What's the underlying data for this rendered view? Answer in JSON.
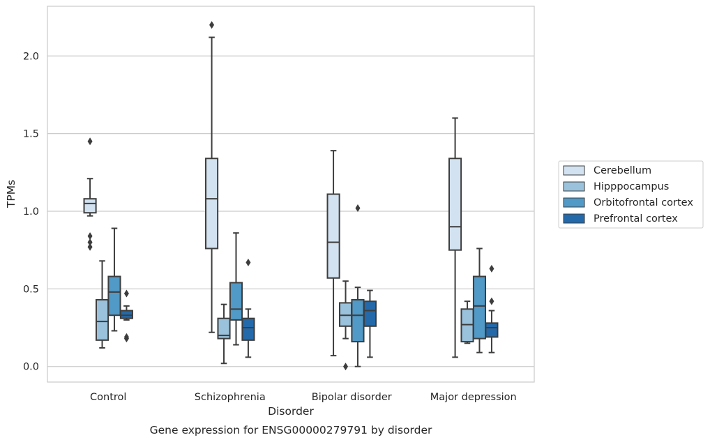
{
  "chart_data": {
    "type": "boxplot",
    "caption": "Gene expression for ENSG00000279791 by disorder",
    "xlabel": "Disorder",
    "ylabel": "TPMs",
    "ylim": [
      -0.1,
      2.32
    ],
    "yticks": [
      0.0,
      0.5,
      1.0,
      1.5,
      2.0
    ],
    "ytick_labels": [
      "0.0",
      "0.5",
      "1.0",
      "1.5",
      "2.0"
    ],
    "grid": "horizontal",
    "legend_position": "right",
    "categories": [
      "Control",
      "Schizophrenia",
      "Bipolar disorder",
      "Major depression"
    ],
    "series": [
      {
        "name": "Cerebellum",
        "color": "#d3e2f1",
        "boxes": [
          {
            "whislo": 0.97,
            "q1": 0.99,
            "med": 1.05,
            "q3": 1.08,
            "whishi": 1.21,
            "fliers": [
              1.45,
              0.84,
              0.8,
              0.77
            ]
          },
          {
            "whislo": 0.22,
            "q1": 0.76,
            "med": 1.08,
            "q3": 1.34,
            "whishi": 2.12,
            "fliers": [
              2.2
            ]
          },
          {
            "whislo": 0.07,
            "q1": 0.57,
            "med": 0.8,
            "q3": 1.11,
            "whishi": 1.39,
            "fliers": []
          },
          {
            "whislo": 0.06,
            "q1": 0.75,
            "med": 0.9,
            "q3": 1.34,
            "whishi": 1.6,
            "fliers": []
          }
        ]
      },
      {
        "name": "Hipppocampus",
        "color": "#9ac2dc",
        "boxes": [
          {
            "whislo": 0.12,
            "q1": 0.17,
            "med": 0.29,
            "q3": 0.43,
            "whishi": 0.68,
            "fliers": []
          },
          {
            "whislo": 0.02,
            "q1": 0.18,
            "med": 0.2,
            "q3": 0.31,
            "whishi": 0.4,
            "fliers": []
          },
          {
            "whislo": 0.18,
            "q1": 0.26,
            "med": 0.33,
            "q3": 0.41,
            "whishi": 0.55,
            "fliers": [
              0.0
            ]
          },
          {
            "whislo": 0.15,
            "q1": 0.16,
            "med": 0.27,
            "q3": 0.37,
            "whishi": 0.42,
            "fliers": []
          }
        ]
      },
      {
        "name": "Orbitofrontal cortex",
        "color": "#5199c6",
        "boxes": [
          {
            "whislo": 0.23,
            "q1": 0.33,
            "med": 0.48,
            "q3": 0.58,
            "whishi": 0.89,
            "fliers": []
          },
          {
            "whislo": 0.14,
            "q1": 0.3,
            "med": 0.37,
            "q3": 0.54,
            "whishi": 0.86,
            "fliers": []
          },
          {
            "whislo": 0.0,
            "q1": 0.16,
            "med": 0.33,
            "q3": 0.43,
            "whishi": 0.51,
            "fliers": [
              1.02
            ]
          },
          {
            "whislo": 0.09,
            "q1": 0.18,
            "med": 0.39,
            "q3": 0.58,
            "whishi": 0.76,
            "fliers": []
          }
        ]
      },
      {
        "name": "Prefrontal cortex",
        "color": "#2469aa",
        "boxes": [
          {
            "whislo": 0.3,
            "q1": 0.31,
            "med": 0.33,
            "q3": 0.36,
            "whishi": 0.39,
            "fliers": [
              0.47,
              0.19,
              0.18
            ]
          },
          {
            "whislo": 0.06,
            "q1": 0.17,
            "med": 0.25,
            "q3": 0.31,
            "whishi": 0.37,
            "fliers": [
              0.67
            ]
          },
          {
            "whislo": 0.06,
            "q1": 0.26,
            "med": 0.36,
            "q3": 0.42,
            "whishi": 0.49,
            "fliers": []
          },
          {
            "whislo": 0.09,
            "q1": 0.19,
            "med": 0.25,
            "q3": 0.28,
            "whishi": 0.36,
            "fliers": [
              0.63,
              0.42
            ]
          }
        ]
      }
    ]
  }
}
